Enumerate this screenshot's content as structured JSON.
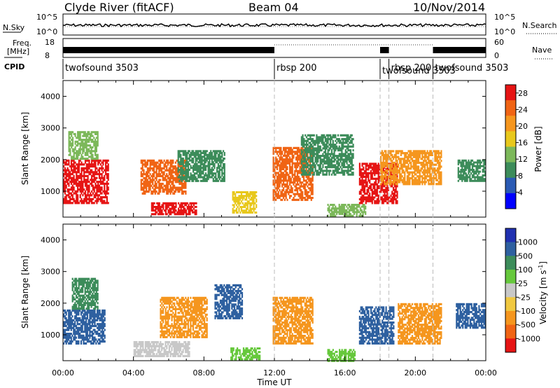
{
  "header": {
    "station": "Clyde River (fitACF)",
    "beam": "Beam 04",
    "date": "10/Nov/2014"
  },
  "top_panels": {
    "nsky_label": "N.Sky",
    "nsky_tick_hi": "10^5",
    "nsky_tick_lo": "10^0",
    "nsearch_label": "N.Search",
    "freq_label_1": "Freq.",
    "freq_label_2": "[MHz]",
    "freq_tick_hi": "18",
    "freq_tick_lo": "8",
    "nave_label": "Nave",
    "nave_tick_hi": "60",
    "nave_tick_lo": "0",
    "cpid_label": "CPID",
    "cpid_segments": [
      {
        "name": "twofsound 3503",
        "start_h": 0.0,
        "end_h": 12.0
      },
      {
        "name": "rbsp 200",
        "start_h": 12.0,
        "end_h": 18.0
      },
      {
        "name": "twofsound 3503",
        "start_h": 18.0,
        "end_h": 18.5
      },
      {
        "name": "rbsp 200",
        "start_h": 18.5,
        "end_h": 21.0
      },
      {
        "name": "twofsound 3503",
        "start_h": 21.0,
        "end_h": 24.0
      }
    ]
  },
  "chart_data": [
    {
      "type": "heatmap",
      "title": "Power",
      "xlabel": "Time UT",
      "ylabel": "Slant Range [km]",
      "x_ticks": [
        "00:00",
        "04:00",
        "08:00",
        "12:00",
        "16:00",
        "20:00",
        "00:00"
      ],
      "xlim_hours": [
        0,
        24
      ],
      "y_ticks": [
        1000,
        2000,
        3000,
        4000
      ],
      "ylim": [
        180,
        4500
      ],
      "colorbar_label": "Power [dB]",
      "colorbar_ticks": [
        4,
        8,
        12,
        16,
        20,
        24,
        28
      ],
      "colorbar_range": [
        0,
        30
      ],
      "colorbar_colors": [
        "#0000ff",
        "#2a5ab4",
        "#3c8c5a",
        "#7cb85a",
        "#e8c81c",
        "#f5961e",
        "#f06414",
        "#e61414"
      ],
      "regions": [
        {
          "t0": 0.0,
          "t1": 2.6,
          "r0": 600,
          "r1": 2000,
          "value": 27
        },
        {
          "t0": 0.3,
          "t1": 2.0,
          "r0": 2000,
          "r1": 2900,
          "value": 14
        },
        {
          "t0": 4.4,
          "t1": 7.0,
          "r0": 900,
          "r1": 2000,
          "value": 24
        },
        {
          "t0": 5.0,
          "t1": 7.6,
          "r0": 250,
          "r1": 650,
          "value": 28
        },
        {
          "t0": 6.5,
          "t1": 9.2,
          "r0": 1300,
          "r1": 2300,
          "value": 10
        },
        {
          "t0": 9.6,
          "t1": 11.0,
          "r0": 300,
          "r1": 1000,
          "value": 16
        },
        {
          "t0": 11.9,
          "t1": 14.2,
          "r0": 700,
          "r1": 2400,
          "value": 26
        },
        {
          "t0": 13.5,
          "t1": 16.5,
          "r0": 1500,
          "r1": 2800,
          "value": 9
        },
        {
          "t0": 15.0,
          "t1": 17.2,
          "r0": 200,
          "r1": 600,
          "value": 13
        },
        {
          "t0": 16.8,
          "t1": 19.0,
          "r0": 600,
          "r1": 1900,
          "value": 27
        },
        {
          "t0": 18.0,
          "t1": 21.5,
          "r0": 1200,
          "r1": 2300,
          "value": 20
        },
        {
          "t0": 22.4,
          "t1": 24.0,
          "r0": 1300,
          "r1": 2000,
          "value": 11
        }
      ]
    },
    {
      "type": "heatmap",
      "title": "Velocity",
      "xlabel": "Time UT",
      "ylabel": "Slant Range [km]",
      "x_ticks": [
        "00:00",
        "04:00",
        "08:00",
        "12:00",
        "16:00",
        "20:00",
        "00:00"
      ],
      "xlim_hours": [
        0,
        24
      ],
      "y_ticks": [
        1000,
        2000,
        3000,
        4000
      ],
      "ylim": [
        180,
        4500
      ],
      "colorbar_label": "Velocity [m s^-1]",
      "colorbar_ticks": [
        1000,
        500,
        100,
        25,
        -25,
        -100,
        -500,
        -1000
      ],
      "colorbar_colors": [
        "#2030b0",
        "#2e60a0",
        "#3c8c5a",
        "#66c83c",
        "#c8c8c8",
        "#f0c840",
        "#f5961e",
        "#f06414",
        "#e61414"
      ],
      "regions": [
        {
          "t0": 0.0,
          "t1": 2.4,
          "r0": 700,
          "r1": 1800,
          "value": 600
        },
        {
          "t0": 0.5,
          "t1": 2.0,
          "r0": 1800,
          "r1": 2800,
          "value": 300
        },
        {
          "t0": 4.0,
          "t1": 7.2,
          "r0": 300,
          "r1": 800,
          "value": 20
        },
        {
          "t0": 5.5,
          "t1": 8.2,
          "r0": 900,
          "r1": 2200,
          "value": -400
        },
        {
          "t0": 8.6,
          "t1": 10.2,
          "r0": 1500,
          "r1": 2600,
          "value": 800
        },
        {
          "t0": 9.5,
          "t1": 11.2,
          "r0": 200,
          "r1": 600,
          "value": 80
        },
        {
          "t0": 11.9,
          "t1": 14.2,
          "r0": 700,
          "r1": 2200,
          "value": -450
        },
        {
          "t0": 15.0,
          "t1": 16.6,
          "r0": 150,
          "r1": 550,
          "value": 60
        },
        {
          "t0": 16.8,
          "t1": 18.8,
          "r0": 700,
          "r1": 1900,
          "value": 700
        },
        {
          "t0": 19.0,
          "t1": 21.5,
          "r0": 700,
          "r1": 2000,
          "value": -450
        },
        {
          "t0": 22.3,
          "t1": 24.0,
          "r0": 1200,
          "r1": 2000,
          "value": 500
        }
      ]
    }
  ]
}
